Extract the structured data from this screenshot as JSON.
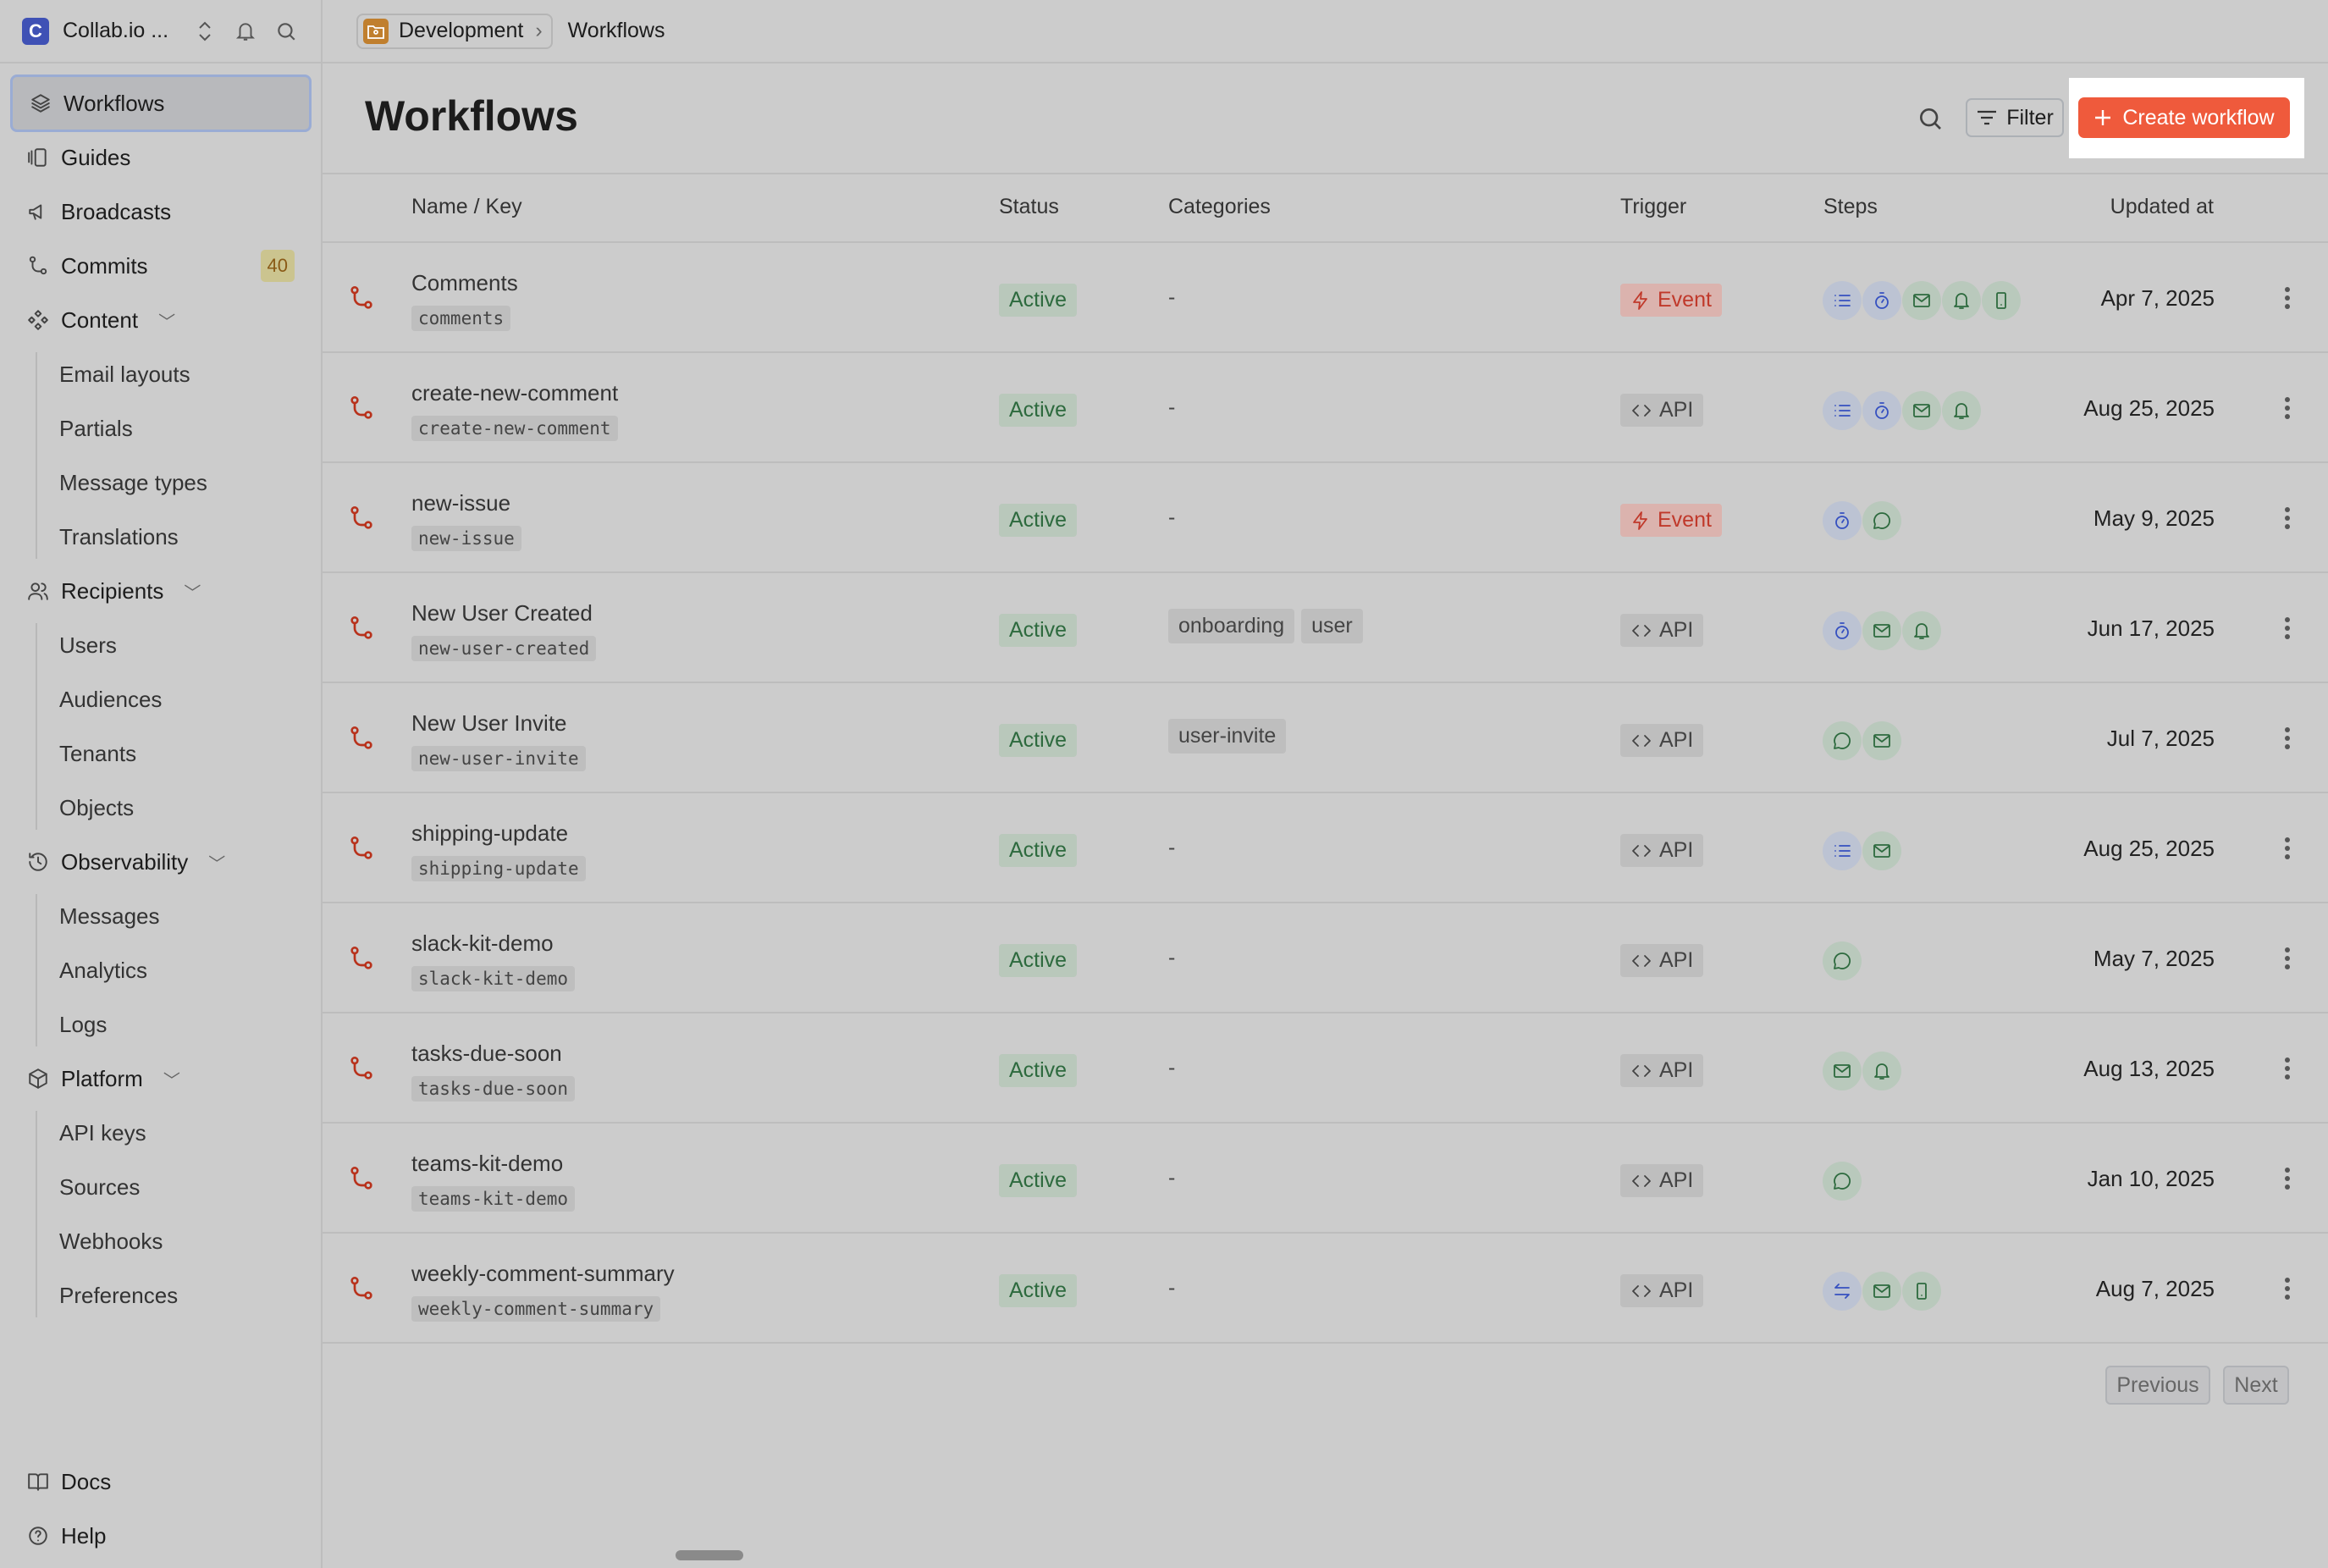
{
  "workspace": {
    "logo_letter": "C",
    "name": "Collab.io ..."
  },
  "breadcrumb": {
    "environment": "Development",
    "page": "Workflows"
  },
  "sidebar": {
    "items": [
      {
        "label": "Workflows",
        "icon": "layers-icon",
        "selected": true
      },
      {
        "label": "Guides",
        "icon": "guides-icon"
      },
      {
        "label": "Broadcasts",
        "icon": "megaphone-icon"
      },
      {
        "label": "Commits",
        "icon": "commit-icon",
        "badge": "40"
      },
      {
        "label": "Content",
        "icon": "components-icon",
        "expandable": true
      },
      {
        "label": "Email layouts",
        "sub": true
      },
      {
        "label": "Partials",
        "sub": true
      },
      {
        "label": "Message types",
        "sub": true
      },
      {
        "label": "Translations",
        "sub": true
      },
      {
        "label": "Recipients",
        "icon": "users-icon",
        "expandable": true
      },
      {
        "label": "Users",
        "sub": true
      },
      {
        "label": "Audiences",
        "sub": true
      },
      {
        "label": "Tenants",
        "sub": true
      },
      {
        "label": "Objects",
        "sub": true
      },
      {
        "label": "Observability",
        "icon": "history-icon",
        "expandable": true
      },
      {
        "label": "Messages",
        "sub": true
      },
      {
        "label": "Analytics",
        "sub": true
      },
      {
        "label": "Logs",
        "sub": true
      },
      {
        "label": "Platform",
        "icon": "package-icon",
        "expandable": true
      },
      {
        "label": "API keys",
        "sub": true
      },
      {
        "label": "Sources",
        "sub": true
      },
      {
        "label": "Webhooks",
        "sub": true
      },
      {
        "label": "Preferences",
        "sub": true
      }
    ],
    "footer": [
      {
        "label": "Docs",
        "icon": "book-icon"
      },
      {
        "label": "Help",
        "icon": "help-icon"
      }
    ]
  },
  "page": {
    "title": "Workflows",
    "filter_label": "Filter",
    "create_label": "Create workflow"
  },
  "table": {
    "columns": [
      "Name / Key",
      "Status",
      "Categories",
      "Trigger",
      "Steps",
      "Updated at"
    ],
    "rows": [
      {
        "name": "Comments",
        "key": "comments",
        "status": "Active",
        "categories": [],
        "trigger": "Event",
        "steps": [
          "batch",
          "delay",
          "email",
          "in-app",
          "push"
        ],
        "updated": "Apr 7, 2025"
      },
      {
        "name": "create-new-comment",
        "key": "create-new-comment",
        "status": "Active",
        "categories": [],
        "trigger": "API",
        "steps": [
          "batch",
          "delay",
          "email",
          "in-app"
        ],
        "updated": "Aug 25, 2025"
      },
      {
        "name": "new-issue",
        "key": "new-issue",
        "status": "Active",
        "categories": [],
        "trigger": "Event",
        "steps": [
          "delay",
          "chat"
        ],
        "updated": "May 9, 2025"
      },
      {
        "name": "New User Created",
        "key": "new-user-created",
        "status": "Active",
        "categories": [
          "onboarding",
          "user"
        ],
        "trigger": "API",
        "steps": [
          "delay",
          "email",
          "in-app"
        ],
        "updated": "Jun 17, 2025"
      },
      {
        "name": "New User Invite",
        "key": "new-user-invite",
        "status": "Active",
        "categories": [
          "user-invite"
        ],
        "trigger": "API",
        "steps": [
          "chat",
          "email"
        ],
        "updated": "Jul 7, 2025"
      },
      {
        "name": "shipping-update",
        "key": "shipping-update",
        "status": "Active",
        "categories": [],
        "trigger": "API",
        "steps": [
          "batch",
          "email"
        ],
        "updated": "Aug 25, 2025"
      },
      {
        "name": "slack-kit-demo",
        "key": "slack-kit-demo",
        "status": "Active",
        "categories": [],
        "trigger": "API",
        "steps": [
          "chat"
        ],
        "updated": "May 7, 2025"
      },
      {
        "name": "tasks-due-soon",
        "key": "tasks-due-soon",
        "status": "Active",
        "categories": [],
        "trigger": "API",
        "steps": [
          "email",
          "in-app"
        ],
        "updated": "Aug 13, 2025"
      },
      {
        "name": "teams-kit-demo",
        "key": "teams-kit-demo",
        "status": "Active",
        "categories": [],
        "trigger": "API",
        "steps": [
          "chat"
        ],
        "updated": "Jan 10, 2025"
      },
      {
        "name": "weekly-comment-summary",
        "key": "weekly-comment-summary",
        "status": "Active",
        "categories": [],
        "trigger": "API",
        "steps": [
          "branch",
          "email",
          "push"
        ],
        "updated": "Aug 7, 2025"
      }
    ],
    "empty_category": "-"
  },
  "pagination": {
    "previous": "Previous",
    "next": "Next"
  },
  "colors": {
    "accent": "#ef5a3c",
    "active": "#2d6a3e",
    "event": "#c0392b",
    "step_blue": "#3550c0",
    "step_green": "#2d6a3e"
  }
}
